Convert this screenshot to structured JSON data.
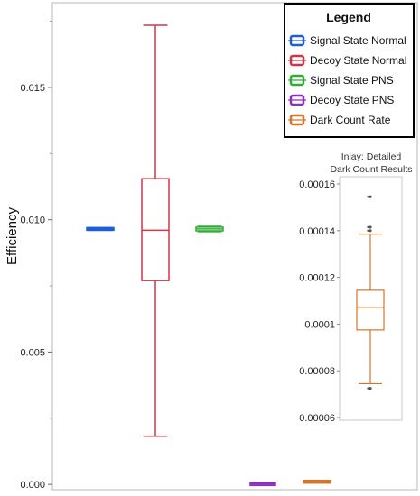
{
  "chart_data": [
    {
      "type": "box",
      "ylabel": "Efficiency",
      "ylim": [
        -0.0002,
        0.0182
      ],
      "yticks": [
        "0.000",
        "0.005",
        "0.010",
        "0.015"
      ],
      "grid": false,
      "legend_placement": "top-right",
      "legend": {
        "title": "Legend",
        "entries": [
          {
            "name": "Signal State Normal",
            "color": "#1f5fd6"
          },
          {
            "name": "Decoy State Normal",
            "color": "#d2344a"
          },
          {
            "name": "Signal State PNS",
            "color": "#2fae33"
          },
          {
            "name": "Decoy State PNS",
            "color": "#8e2fc4"
          },
          {
            "name": "Dark Count Rate",
            "color": "#d4762a"
          }
        ]
      },
      "series": [
        {
          "name": "Signal State Normal",
          "color": "#1f5fd6",
          "min": 0.0096,
          "q1": 0.00962,
          "median": 0.00965,
          "q3": 0.00968,
          "max": 0.0097
        },
        {
          "name": "Decoy State Normal",
          "color": "#d2344a",
          "min": 0.00182,
          "q1": 0.0077,
          "median": 0.0096,
          "q3": 0.01155,
          "max": 0.01735
        },
        {
          "name": "Signal State PNS",
          "color": "#2fae33",
          "min": 0.00955,
          "q1": 0.00958,
          "median": 0.00965,
          "q3": 0.00972,
          "max": 0.00975
        },
        {
          "name": "Decoy State PNS",
          "color": "#8e2fc4",
          "min": 1e-05,
          "q1": 1e-05,
          "median": 1e-05,
          "q3": 2e-05,
          "max": 2e-05
        },
        {
          "name": "Dark Count Rate",
          "color": "#d4762a",
          "min": 7e-05,
          "q1": 9e-05,
          "median": 0.0001,
          "q3": 0.00012,
          "max": 0.00014
        }
      ]
    },
    {
      "type": "box",
      "title": "Inlay: Detailed Dark Count Results",
      "title_lines": [
        "Inlay: Detailed",
        "Dark Count Results"
      ],
      "ylim": [
        6e-05,
        0.00016
      ],
      "yticks": [
        "0.00016",
        "0.00014",
        "0.00012",
        "0.0001",
        "0.00008",
        "0.00006"
      ],
      "ytick_values": [
        0.00016,
        0.00014,
        0.00012,
        0.0001,
        8e-05,
        6e-05
      ],
      "series": [
        {
          "name": "Dark Count Rate",
          "color": "#d4762a",
          "min": 7.45e-05,
          "q1": 9.75e-05,
          "median": 0.000107,
          "q3": 0.0001145,
          "max": 0.0001385,
          "outliers": [
            7.25e-05,
            0.00014,
            0.0001415,
            0.0001545
          ]
        }
      ]
    }
  ]
}
